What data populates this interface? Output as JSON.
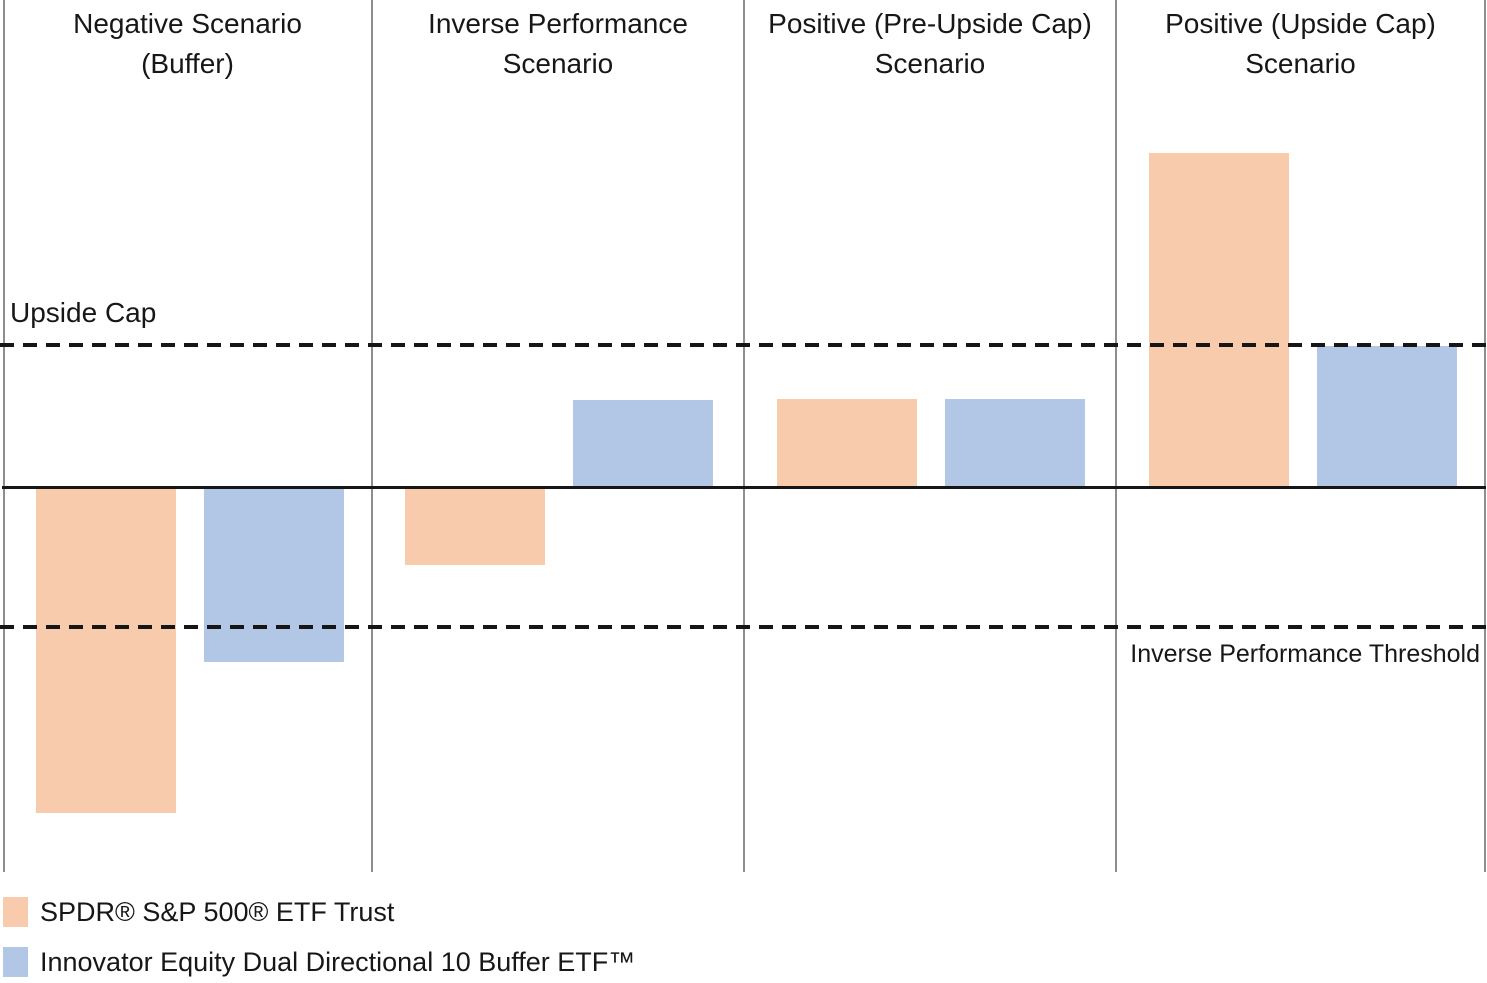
{
  "chart_data": {
    "type": "bar",
    "title": "",
    "xlabel": "",
    "ylabel": "",
    "axis_tick_labels_shown": false,
    "grid": false,
    "legend_position": "bottom-left",
    "units": "illustrative relative return (no numeric axis shown)",
    "ylim": [
      -38.5,
      48.7
    ],
    "categories": [
      "Negative Scenario\n(Buffer)",
      "Inverse Performance\nScenario",
      "Positive (Pre-Upside Cap)\nScenario",
      "Positive (Upside Cap)\nScenario"
    ],
    "series": [
      {
        "name": "SPDR® S&P 500® ETF Trust",
        "color": "#F8CBAD",
        "values": [
          -32.6,
          -7.8,
          8.8,
          33.4
        ]
      },
      {
        "name": "Innovator Equity Dual Directional 10 Buffer ETF™",
        "color": "#B2C6E5",
        "values": [
          -17.5,
          8.7,
          8.8,
          14.1
        ]
      }
    ],
    "reference_lines": [
      {
        "label": "Upside Cap",
        "value": 14.2,
        "style": "dashed",
        "color": "#161616"
      },
      {
        "label": "Inverse Performance Threshold",
        "value": -14.0,
        "style": "dashed",
        "color": "#161616"
      },
      {
        "label": "",
        "value": 0,
        "style": "solid",
        "color": "#161616"
      }
    ]
  },
  "legend": {
    "items": [
      {
        "label": "SPDR® S&P 500® ETF Trust",
        "color": "#F8CBAD"
      },
      {
        "label": "Innovator Equity Dual Directional 10 Buffer ETF™",
        "color": "#B2C6E5"
      }
    ]
  }
}
